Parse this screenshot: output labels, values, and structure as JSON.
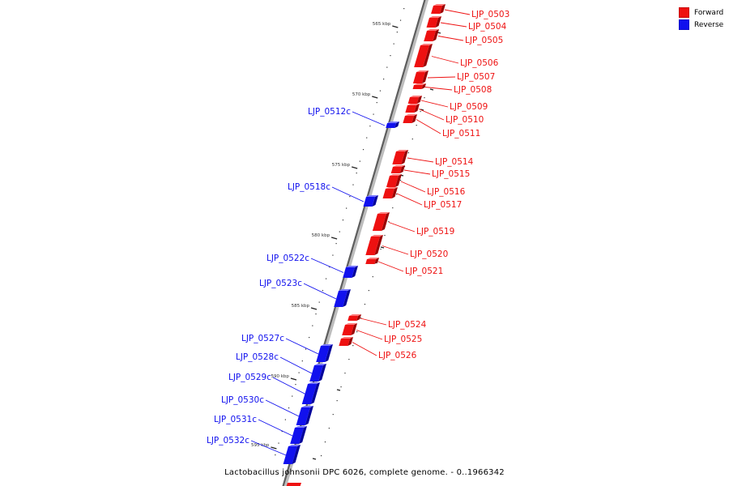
{
  "legend": {
    "forward_label": "Forward",
    "reverse_label": "Reverse",
    "forward_color": "#ee1111",
    "reverse_color": "#1111ee"
  },
  "caption": "Lactobacillus johnsonii DPC 6026, complete genome. - 0..1966342",
  "scale_ticks": [
    "565 kbp",
    "570 kbp",
    "575 kbp",
    "580 kbp",
    "585 kbp",
    "590 kbp",
    "595 kbp"
  ],
  "genes": [
    {
      "name": "LJP_0503",
      "strand": "forward"
    },
    {
      "name": "LJP_0504",
      "strand": "forward"
    },
    {
      "name": "LJP_0505",
      "strand": "forward"
    },
    {
      "name": "LJP_0506",
      "strand": "forward"
    },
    {
      "name": "LJP_0507",
      "strand": "forward"
    },
    {
      "name": "LJP_0508",
      "strand": "forward"
    },
    {
      "name": "LJP_0509",
      "strand": "forward"
    },
    {
      "name": "LJP_0510",
      "strand": "forward"
    },
    {
      "name": "LJP_0511",
      "strand": "forward"
    },
    {
      "name": "LJP_0512c",
      "strand": "reverse"
    },
    {
      "name": "LJP_0514",
      "strand": "forward"
    },
    {
      "name": "LJP_0515",
      "strand": "forward"
    },
    {
      "name": "LJP_0516",
      "strand": "forward"
    },
    {
      "name": "LJP_0517",
      "strand": "forward"
    },
    {
      "name": "LJP_0518c",
      "strand": "reverse"
    },
    {
      "name": "LJP_0519",
      "strand": "forward"
    },
    {
      "name": "LJP_0520",
      "strand": "forward"
    },
    {
      "name": "LJP_0521",
      "strand": "forward"
    },
    {
      "name": "LJP_0522c",
      "strand": "reverse"
    },
    {
      "name": "LJP_0523c",
      "strand": "reverse"
    },
    {
      "name": "LJP_0524",
      "strand": "forward"
    },
    {
      "name": "LJP_0525",
      "strand": "forward"
    },
    {
      "name": "LJP_0526",
      "strand": "forward"
    },
    {
      "name": "LJP_0527c",
      "strand": "reverse"
    },
    {
      "name": "LJP_0528c",
      "strand": "reverse"
    },
    {
      "name": "LJP_0529c",
      "strand": "reverse"
    },
    {
      "name": "LJP_0530c",
      "strand": "reverse"
    },
    {
      "name": "LJP_0531c",
      "strand": "reverse"
    },
    {
      "name": "LJP_0532c",
      "strand": "reverse"
    }
  ]
}
